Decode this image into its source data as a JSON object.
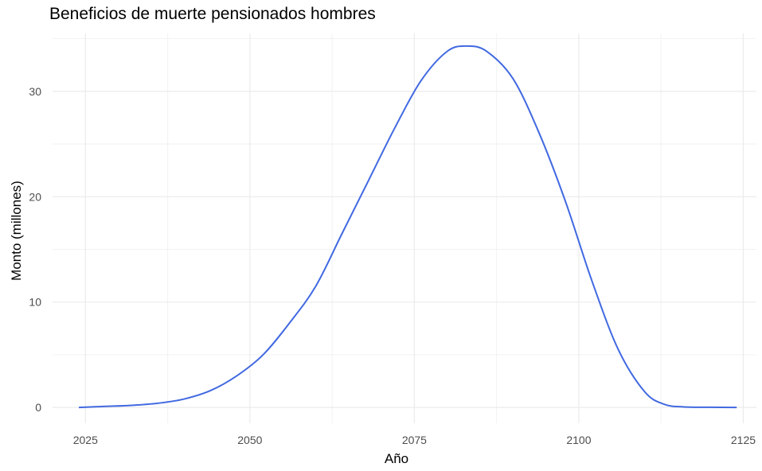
{
  "chart_data": {
    "type": "line",
    "title": "Beneficios de muerte pensionados hombres",
    "xlabel": "Año",
    "ylabel": "Monto (millones)",
    "xlim": [
      2020,
      2127
    ],
    "ylim": [
      -1.5,
      35.5
    ],
    "x_ticks": [
      2025,
      2050,
      2075,
      2100,
      2125
    ],
    "y_ticks": [
      0,
      10,
      20,
      30
    ],
    "grid": true,
    "line_color": "#4169E1",
    "x": [
      2024,
      2028,
      2032,
      2036,
      2040,
      2044,
      2048,
      2052,
      2056,
      2060,
      2064,
      2068,
      2072,
      2076,
      2080,
      2083,
      2086,
      2090,
      2094,
      2098,
      2102,
      2106,
      2110,
      2113,
      2116,
      2120,
      2124
    ],
    "y": [
      0,
      0.1,
      0.2,
      0.4,
      0.8,
      1.6,
      3.0,
      5.0,
      8.0,
      11.5,
      16.5,
      21.5,
      26.5,
      31.0,
      33.8,
      34.3,
      33.8,
      31.2,
      26.0,
      19.5,
      12.0,
      5.5,
      1.5,
      0.3,
      0.05,
      0.02,
      0
    ]
  }
}
